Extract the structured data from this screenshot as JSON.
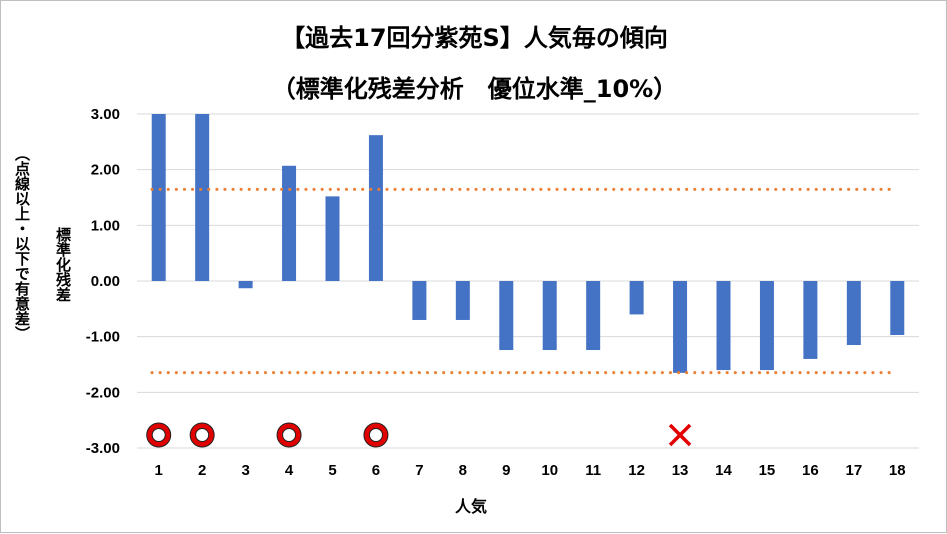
{
  "chart_data": {
    "type": "bar",
    "title": "【過去17回分紫苑S】人気毎の傾向",
    "subtitle": "（標準化残差分析　優位水準_10%）",
    "xlabel": "人気",
    "ylabel": "標準化残差",
    "ylabel_sub": "（点線以上・以下で有意差）",
    "categories": [
      "1",
      "2",
      "3",
      "4",
      "5",
      "6",
      "7",
      "8",
      "9",
      "10",
      "11",
      "12",
      "13",
      "14",
      "15",
      "16",
      "17",
      "18"
    ],
    "values": [
      3.0,
      3.0,
      -0.13,
      2.07,
      1.52,
      2.62,
      -0.7,
      -0.7,
      -1.24,
      -1.24,
      -1.24,
      -0.6,
      -1.65,
      -1.6,
      -1.6,
      -1.4,
      -1.15,
      -0.97
    ],
    "ylim": [
      -3.0,
      3.0
    ],
    "yticks": [
      "3.00",
      "2.00",
      "1.00",
      "0.00",
      "-1.00",
      "-2.00",
      "-3.00"
    ],
    "significance_lines": [
      1.645,
      -1.645
    ],
    "bar_color": "#4472c4",
    "threshold_color": "#ed7d31",
    "markers": [
      {
        "category": "1",
        "symbol": "circle"
      },
      {
        "category": "2",
        "symbol": "circle"
      },
      {
        "category": "4",
        "symbol": "circle"
      },
      {
        "category": "6",
        "symbol": "circle"
      },
      {
        "category": "13",
        "symbol": "cross"
      }
    ],
    "circle_marker_color": "#e00000",
    "cross_marker_color": "#e00000"
  }
}
